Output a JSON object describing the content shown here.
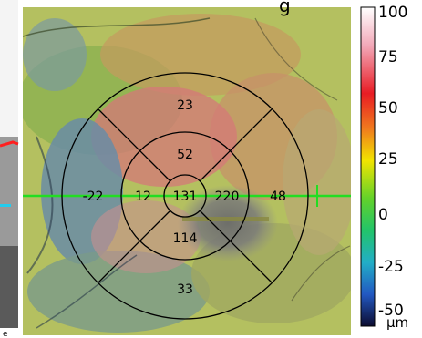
{
  "title_fragment": "g",
  "chart_data": {
    "type": "heatmap",
    "title": "",
    "sector_values": {
      "center": 131,
      "inner_superior": 52,
      "inner_nasal": 12,
      "inner_temporal": 220,
      "inner_inferior": 114,
      "outer_superior": 23,
      "outer_nasal": -22,
      "outer_temporal": 48,
      "outer_inferior": 33
    },
    "colorbar": {
      "ticks": [
        "100",
        "75",
        "50",
        "25",
        "0",
        "-25",
        "-50"
      ],
      "range": [
        -50,
        100
      ],
      "unit": "µm",
      "colors": [
        "#ffffff",
        "#f0a0b0",
        "#e8202a",
        "#f07820",
        "#f0e000",
        "#60d020",
        "#20c860",
        "#20b0c0",
        "#2060c0",
        "#101040"
      ]
    },
    "grid_overlay": "etdrs-rings",
    "horizontal_scan_line_color": "#22dd22"
  },
  "left_strip_marker": "e"
}
